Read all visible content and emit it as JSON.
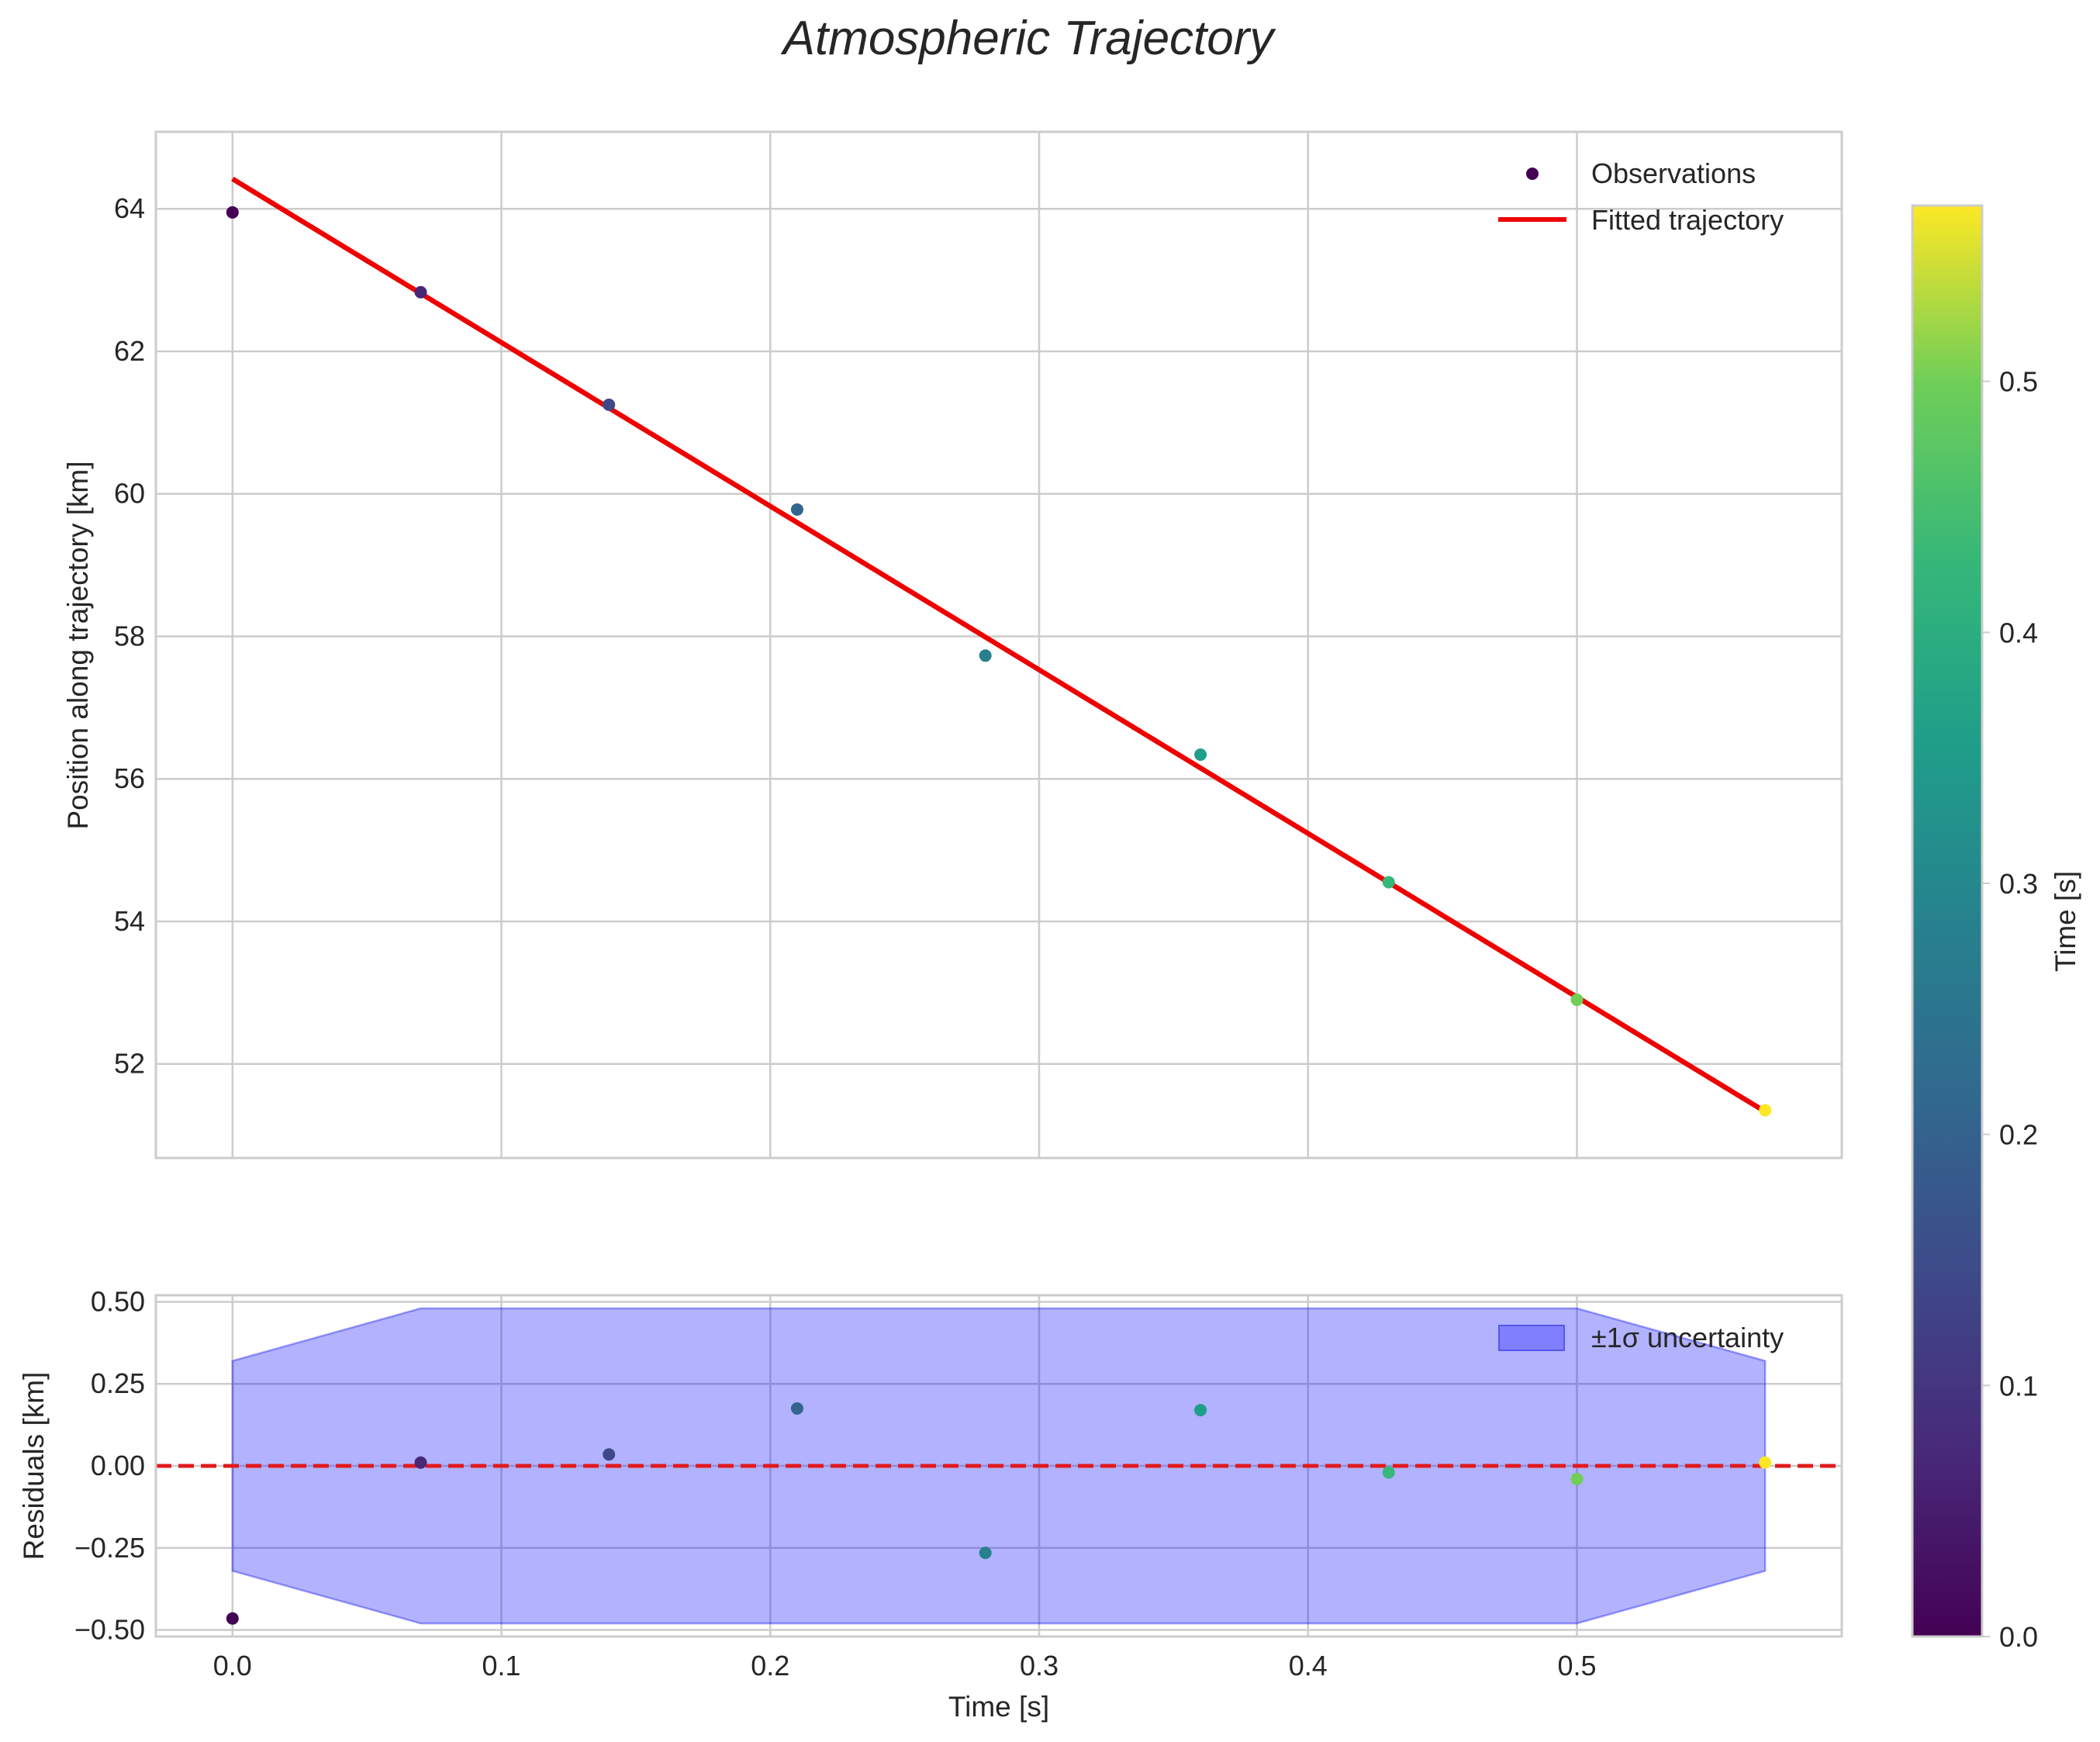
{
  "colors": {
    "fit_line": "#ee0000",
    "zero_line": "#e31a1c",
    "band_fill": "#0000ff",
    "band_edge": "#0000ee",
    "grid": "#cccccc"
  },
  "chart_data": [
    {
      "type": "scatter",
      "panel": "main",
      "title": "Atmospheric Trajectory",
      "xlabel": "",
      "ylabel": "Position along trajectory [km]",
      "xlim": [
        -0.0285,
        0.5985
      ],
      "ylim": [
        50.68,
        65.08
      ],
      "x_ticks": [
        0.0,
        0.1,
        0.2,
        0.3,
        0.4,
        0.5
      ],
      "y_ticks": [
        52,
        54,
        56,
        58,
        60,
        62,
        64
      ],
      "y_tick_labels": [
        "52",
        "54",
        "56",
        "58",
        "60",
        "62",
        "64"
      ],
      "grid": true,
      "legend_position": "top-right",
      "series": [
        {
          "name": "Observations",
          "kind": "scatter",
          "x": [
            0.0,
            0.07,
            0.14,
            0.21,
            0.28,
            0.36,
            0.43,
            0.5,
            0.57
          ],
          "y": [
            63.95,
            62.83,
            61.25,
            59.78,
            57.73,
            56.34,
            54.55,
            52.9,
            51.35
          ]
        },
        {
          "name": "Fitted trajectory",
          "kind": "line",
          "x": [
            0.0,
            0.57
          ],
          "y": [
            64.42,
            51.33
          ]
        }
      ]
    },
    {
      "type": "scatter",
      "panel": "residuals",
      "xlabel": "Time [s]",
      "ylabel": "Residuals [km]",
      "xlim": [
        -0.0285,
        0.5985
      ],
      "ylim": [
        -0.52,
        0.52
      ],
      "x_ticks": [
        0.0,
        0.1,
        0.2,
        0.3,
        0.4,
        0.5
      ],
      "x_tick_labels": [
        "0.0",
        "0.1",
        "0.2",
        "0.3",
        "0.4",
        "0.5"
      ],
      "y_ticks": [
        -0.5,
        -0.25,
        0.0,
        0.25,
        0.5
      ],
      "y_tick_labels": [
        "−0.50",
        "−0.25",
        "0.00",
        "0.25",
        "0.50"
      ],
      "grid": true,
      "legend_position": "top-right",
      "series": [
        {
          "name": "Residuals",
          "kind": "scatter",
          "x": [
            0.0,
            0.07,
            0.14,
            0.21,
            0.28,
            0.36,
            0.43,
            0.5,
            0.57
          ],
          "y": [
            -0.465,
            0.01,
            0.035,
            0.175,
            -0.265,
            0.17,
            -0.02,
            -0.04,
            0.01
          ]
        },
        {
          "name": "±1σ uncertainty",
          "kind": "band",
          "x": [
            0.0,
            0.07,
            0.14,
            0.21,
            0.28,
            0.36,
            0.43,
            0.5,
            0.57
          ],
          "upper": [
            0.32,
            0.48,
            0.48,
            0.48,
            0.48,
            0.48,
            0.48,
            0.48,
            0.32
          ],
          "lower": [
            -0.32,
            -0.48,
            -0.48,
            -0.48,
            -0.48,
            -0.48,
            -0.48,
            -0.48,
            -0.32
          ]
        },
        {
          "name": "zero reference",
          "kind": "hline",
          "y": 0.0
        }
      ]
    },
    {
      "type": "colorbar",
      "label": "Time [s]",
      "colormap": "viridis",
      "range": [
        0.0,
        0.57
      ],
      "ticks": [
        0.0,
        0.1,
        0.2,
        0.3,
        0.4,
        0.5
      ],
      "tick_labels": [
        "0.0",
        "0.1",
        "0.2",
        "0.3",
        "0.4",
        "0.5"
      ]
    }
  ]
}
